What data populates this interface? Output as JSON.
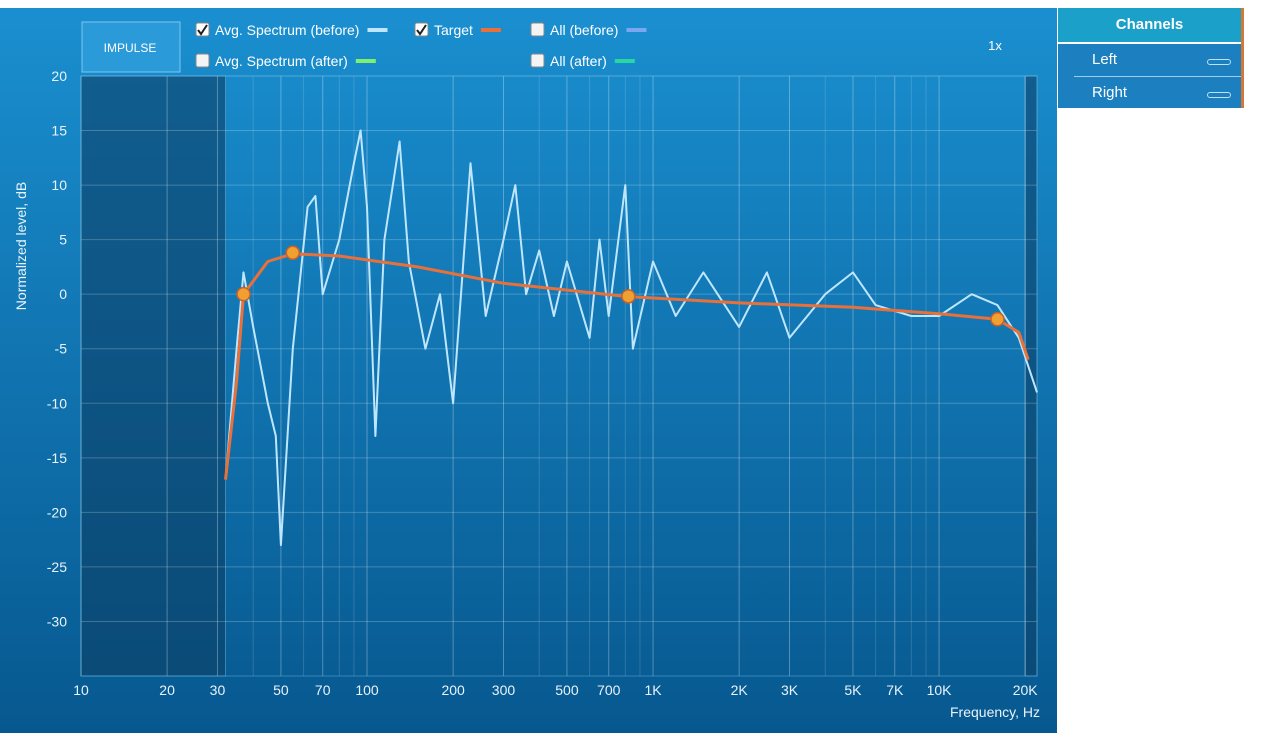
{
  "button": "IMPULSE",
  "zoom": "1x",
  "channels": {
    "title": "Channels",
    "items": [
      "Left",
      "Right"
    ]
  },
  "legend": [
    {
      "label": "Avg. Spectrum (before)",
      "checked": true,
      "color": "#bfe6ff"
    },
    {
      "label": "Target",
      "checked": true,
      "color": "#e8703a"
    },
    {
      "label": "All (before)",
      "checked": false,
      "color": "#7aa8f0"
    },
    {
      "label": "Avg. Spectrum (after)",
      "checked": false,
      "color": "#7ef06a"
    },
    {
      "label": "All (after)",
      "checked": false,
      "color": "#28d6a0"
    }
  ],
  "chart_data": {
    "type": "line",
    "ylabel": "Normalized level, dB",
    "xlabel": "Frequency, Hz",
    "log_x": true,
    "grid": true,
    "xlim": [
      10,
      22000
    ],
    "ylim": [
      -35,
      20
    ],
    "xticks": [
      10,
      20,
      30,
      50,
      70,
      100,
      200,
      300,
      500,
      700,
      {
        "value": 1000,
        "label": "1K"
      },
      {
        "value": 2000,
        "label": "2K"
      },
      {
        "value": 3000,
        "label": "3K"
      },
      {
        "value": 5000,
        "label": "5K"
      },
      {
        "value": 7000,
        "label": "7K"
      },
      {
        "value": 10000,
        "label": "10K"
      },
      {
        "value": 20000,
        "label": "20K"
      }
    ],
    "xminor": [
      40,
      60,
      80,
      90,
      400,
      600,
      800,
      900,
      4000,
      6000,
      8000,
      9000
    ],
    "yticks": [
      20,
      15,
      10,
      5,
      0,
      -5,
      -10,
      -15,
      -20,
      -25,
      -30
    ],
    "excluded_ranges": [
      [
        10,
        32
      ],
      [
        20000,
        22000
      ]
    ],
    "series": [
      {
        "name": "Avg. Spectrum (before)",
        "color": "#bfe6ff",
        "x": [
          32,
          35,
          37,
          40,
          45,
          48,
          50,
          55,
          62,
          66,
          70,
          80,
          90,
          95,
          100,
          107,
          115,
          130,
          140,
          160,
          180,
          200,
          230,
          260,
          300,
          330,
          360,
          400,
          450,
          500,
          600,
          650,
          700,
          800,
          850,
          1000,
          1200,
          1500,
          2000,
          2500,
          3000,
          4000,
          5000,
          6000,
          8000,
          10000,
          13000,
          16000,
          19000,
          22000
        ],
        "values": [
          -17,
          -5,
          2,
          -3,
          -10,
          -13,
          -23,
          -5,
          8,
          9,
          0,
          5,
          12,
          15,
          8,
          -13,
          5,
          14,
          3,
          -5,
          0,
          -10,
          12,
          -2,
          5,
          10,
          0,
          4,
          -2,
          3,
          -4,
          5,
          -2,
          10,
          -5,
          3,
          -2,
          2,
          -3,
          2,
          -4,
          0,
          2,
          -1,
          -2,
          -2,
          0,
          -1,
          -4,
          -9
        ]
      },
      {
        "name": "Target",
        "color": "#e8703a",
        "x": [
          32,
          35,
          37,
          45,
          55,
          80,
          150,
          300,
          800,
          2000,
          5000,
          10000,
          16000,
          19000,
          20500
        ],
        "values": [
          -17,
          -8,
          0,
          3,
          3.7,
          3.5,
          2.5,
          1,
          -0.2,
          -0.8,
          -1.2,
          -1.8,
          -2.3,
          -3.5,
          -6
        ]
      }
    ],
    "control_points": {
      "x": [
        37,
        55,
        820,
        16000
      ],
      "values": [
        0,
        3.8,
        -0.2,
        -2.3
      ],
      "color": "#f0a030"
    }
  }
}
